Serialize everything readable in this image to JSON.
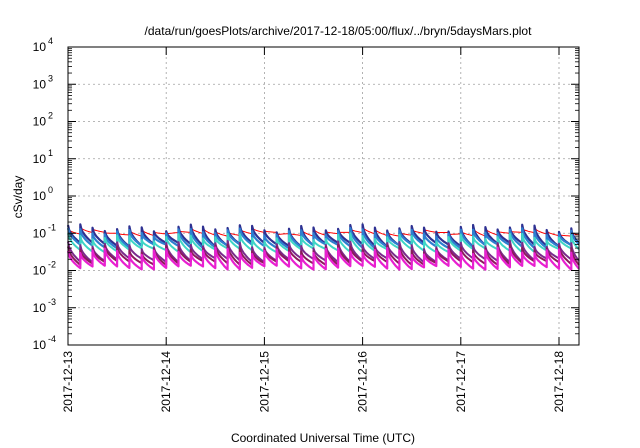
{
  "chart_data": {
    "type": "line",
    "title": "/data/run/goesPlots/archive/2017-12-18/05:00/flux/../bryn/5daysMars.plot",
    "xlabel": "Coordinated Universal Time (UTC)",
    "ylabel": "cSv/day",
    "yscale": "log",
    "ylim": [
      0.0001,
      10000
    ],
    "xlim": [
      "2017-12-13 00:00",
      "2017-12-18 05:00"
    ],
    "grid": true,
    "legend": "none",
    "y_ticks": [
      {
        "base": "10",
        "exp": "-4",
        "value": 0.0001
      },
      {
        "base": "10",
        "exp": "-3",
        "value": 0.001
      },
      {
        "base": "10",
        "exp": "-2",
        "value": 0.01
      },
      {
        "base": "10",
        "exp": "-1",
        "value": 0.1
      },
      {
        "base": "10",
        "exp": "0",
        "value": 1
      },
      {
        "base": "10",
        "exp": "1",
        "value": 10
      },
      {
        "base": "10",
        "exp": "2",
        "value": 100
      },
      {
        "base": "10",
        "exp": "3",
        "value": 1000
      },
      {
        "base": "10",
        "exp": "4",
        "value": 10000
      }
    ],
    "x_ticks": [
      {
        "label": "2017-12-13",
        "day": 0
      },
      {
        "label": "2017-12-14",
        "day": 1
      },
      {
        "label": "2017-12-15",
        "day": 2
      },
      {
        "label": "2017-12-16",
        "day": 3
      },
      {
        "label": "2017-12-17",
        "day": 4
      },
      {
        "label": "2017-12-18",
        "day": 5
      }
    ],
    "cycle_peak_times": [
      "2017-12-13 00:00",
      "2017-12-13 03:00",
      "2017-12-13 06:00",
      "2017-12-13 09:00",
      "2017-12-13 12:00",
      "2017-12-13 15:00",
      "2017-12-13 18:00",
      "2017-12-13 21:00",
      "2017-12-14 00:00",
      "2017-12-14 03:00",
      "2017-12-14 06:00",
      "2017-12-14 09:00",
      "2017-12-14 12:00",
      "2017-12-14 15:00",
      "2017-12-14 18:00",
      "2017-12-14 21:00",
      "2017-12-15 00:00",
      "2017-12-15 03:00",
      "2017-12-15 06:00",
      "2017-12-15 09:00",
      "2017-12-15 12:00",
      "2017-12-15 15:00",
      "2017-12-15 18:00",
      "2017-12-15 21:00",
      "2017-12-16 00:00",
      "2017-12-16 03:00",
      "2017-12-16 06:00",
      "2017-12-16 09:00",
      "2017-12-16 12:00",
      "2017-12-16 15:00",
      "2017-12-16 18:00",
      "2017-12-16 21:00",
      "2017-12-17 00:00",
      "2017-12-17 03:00",
      "2017-12-17 06:00",
      "2017-12-17 09:00",
      "2017-12-17 12:00",
      "2017-12-17 15:00",
      "2017-12-17 18:00",
      "2017-12-17 21:00",
      "2017-12-18 00:00",
      "2017-12-18 03:00"
    ],
    "series": [
      {
        "color": "#ff0000",
        "peak": 0.12,
        "trough": 0.095,
        "width": 1.0
      },
      {
        "color": "#2e3192",
        "peak": 0.14,
        "trough": 0.05,
        "width": 2.2
      },
      {
        "color": "#2d7fd0",
        "peak": 0.11,
        "trough": 0.045,
        "width": 2.2
      },
      {
        "color": "#3ed6c6",
        "peak": 0.08,
        "trough": 0.035,
        "width": 2.0
      },
      {
        "color": "#7b2a8c",
        "peak": 0.05,
        "trough": 0.019,
        "width": 2.0
      },
      {
        "color": "#8b1a5a",
        "peak": 0.04,
        "trough": 0.016,
        "width": 2.0
      },
      {
        "color": "#e820d0",
        "peak": 0.033,
        "trough": 0.012,
        "width": 2.2
      }
    ]
  }
}
